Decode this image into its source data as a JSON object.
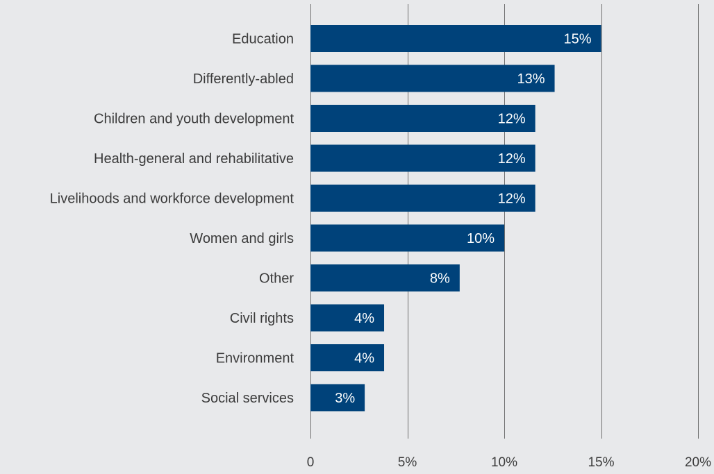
{
  "chart_data": {
    "type": "bar",
    "orientation": "horizontal",
    "categories": [
      "Education",
      "Differently-abled",
      "Children and youth development",
      "Health-general and rehabilitative",
      "Livelihoods and workforce development",
      "Women and girls",
      "Other",
      "Civil rights",
      "Environment",
      "Social services"
    ],
    "values": [
      15,
      12.6,
      11.6,
      11.6,
      11.6,
      10,
      7.7,
      3.8,
      3.8,
      2.8
    ],
    "data_labels": [
      "15%",
      "13%",
      "12%",
      "12%",
      "12%",
      "10%",
      "8%",
      "4%",
      "4%",
      "3%"
    ],
    "xlim": [
      0,
      20
    ],
    "x_ticks": [
      0,
      5,
      10,
      15,
      20
    ],
    "x_tick_labels": [
      "0",
      "5%",
      "10%",
      "15%",
      "20%"
    ],
    "grid": true,
    "title": "",
    "xlabel": "",
    "ylabel": "",
    "colors": {
      "bar": "#00427a",
      "background": "#e8e9eb",
      "gridline": "#6e6e6e",
      "text": "#3b3b3b",
      "value_text": "#ffffff"
    }
  }
}
